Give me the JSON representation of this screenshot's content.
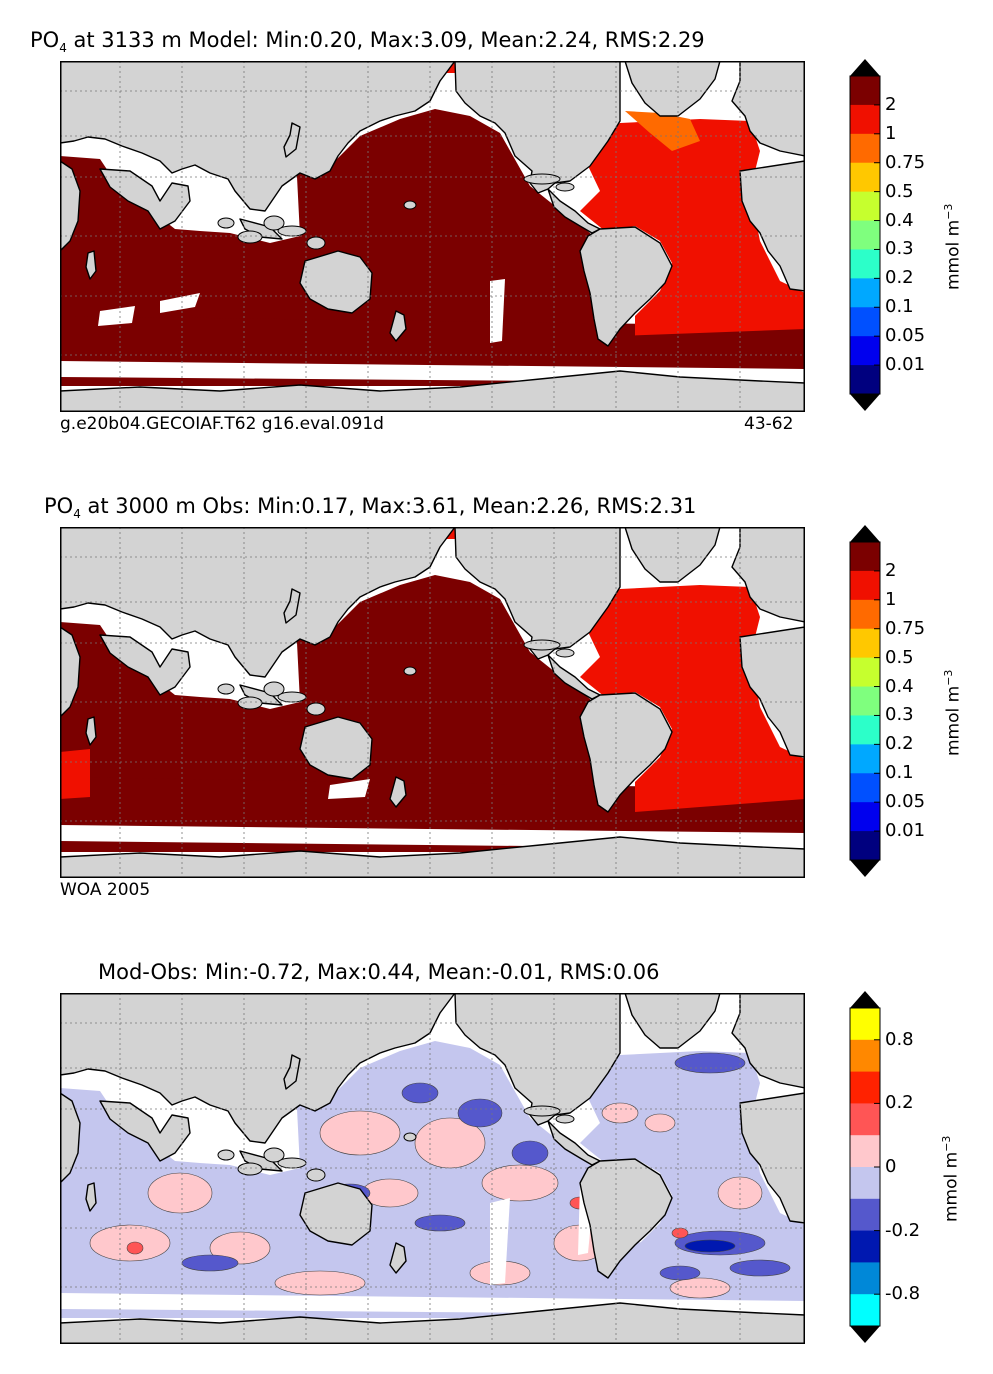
{
  "panels": [
    {
      "title_prefix": "PO",
      "title_sub": "4",
      "title_rest": " at 3133 m Model: Min:0.20, Max:3.09, Mean:2.24, RMS:2.29",
      "left_note": "g.e20b04.GECOIAF.T62 g16.eval.091d",
      "right_note": "43-62"
    },
    {
      "title_prefix": "PO",
      "title_sub": "4",
      "title_rest": " at 3000 m Obs: Min:0.17, Max:3.61, Mean:2.26, RMS:2.31",
      "left_note": "WOA 2005",
      "right_note": ""
    },
    {
      "title_prefix": "",
      "title_sub": "",
      "title_rest": "Mod-Obs: Min:-0.72, Max:0.44, Mean:-0.01, RMS:0.06",
      "left_note": "",
      "right_note": ""
    }
  ],
  "colorbars": [
    {
      "unit_main": "mmol m",
      "unit_sup": "−3",
      "labels": [
        "2",
        "1",
        "0.75",
        "0.5",
        "0.4",
        "0.3",
        "0.2",
        "0.1",
        "0.05",
        "0.01"
      ],
      "colors": [
        "#7b0000",
        "#f01000",
        "#ff6a00",
        "#ffc800",
        "#c6ff2e",
        "#7fff7e",
        "#2cffc9",
        "#00a8ff",
        "#0050ff",
        "#0000ee",
        "#00007f"
      ]
    },
    {
      "unit_main": "mmol m",
      "unit_sup": "−3",
      "labels": [
        "2",
        "1",
        "0.75",
        "0.5",
        "0.4",
        "0.3",
        "0.2",
        "0.1",
        "0.05",
        "0.01"
      ],
      "colors": [
        "#7b0000",
        "#f01000",
        "#ff6a00",
        "#ffc800",
        "#c6ff2e",
        "#7fff7e",
        "#2cffc9",
        "#00a8ff",
        "#0050ff",
        "#0000ee",
        "#00007f"
      ]
    },
    {
      "unit_main": "mmol m",
      "unit_sup": "−3",
      "labels": [
        "0.8",
        "0.2",
        "0",
        "-0.2",
        "-0.8"
      ],
      "colors": [
        "#ffff00",
        "#ff8800",
        "#ff2200",
        "#ff5555",
        "#ffc8cc",
        "#c4c6ee",
        "#5558cc",
        "#0018b0",
        "#0088d8",
        "#00ffff"
      ]
    }
  ],
  "chart_data": [
    {
      "type": "heatmap",
      "title": "PO4 at 3133 m Model: Min:0.20, Max:3.09, Mean:2.24, RMS:2.29",
      "variable": "PO4",
      "depth_m": 3133,
      "source": "Model",
      "stats": {
        "min": 0.2,
        "max": 3.09,
        "mean": 2.24,
        "rms": 2.29
      },
      "colorbar_levels": [
        0.01,
        0.05,
        0.1,
        0.2,
        0.3,
        0.4,
        0.5,
        0.75,
        1,
        2
      ],
      "units": "mmol m^-3",
      "regions": {
        "pacific_indian_southern": ">2",
        "atlantic": "1-2",
        "nordic_seas": "0.75-1"
      }
    },
    {
      "type": "heatmap",
      "title": "PO4 at 3000 m Obs: Min:0.17, Max:3.61, Mean:2.26, RMS:2.31",
      "variable": "PO4",
      "depth_m": 3000,
      "source": "Obs",
      "stats": {
        "min": 0.17,
        "max": 3.61,
        "mean": 2.26,
        "rms": 2.31
      },
      "colorbar_levels": [
        0.01,
        0.05,
        0.1,
        0.2,
        0.3,
        0.4,
        0.5,
        0.75,
        1,
        2
      ],
      "units": "mmol m^-3",
      "regions": {
        "pacific_indian_southern": ">2",
        "atlantic": "1-2"
      }
    },
    {
      "type": "heatmap",
      "title": "Mod-Obs: Min:-0.72, Max:0.44, Mean:-0.01, RMS:0.06",
      "stats": {
        "min": -0.72,
        "max": 0.44,
        "mean": -0.01,
        "rms": 0.06
      },
      "colorbar_ticks": [
        -0.8,
        -0.2,
        0,
        0.2,
        0.8
      ],
      "units": "mmol m^-3",
      "regions": {
        "dominant": "-0.2 to 0",
        "patches_positive": "0 to 0.2",
        "patches_negative": "< -0.2"
      }
    }
  ]
}
